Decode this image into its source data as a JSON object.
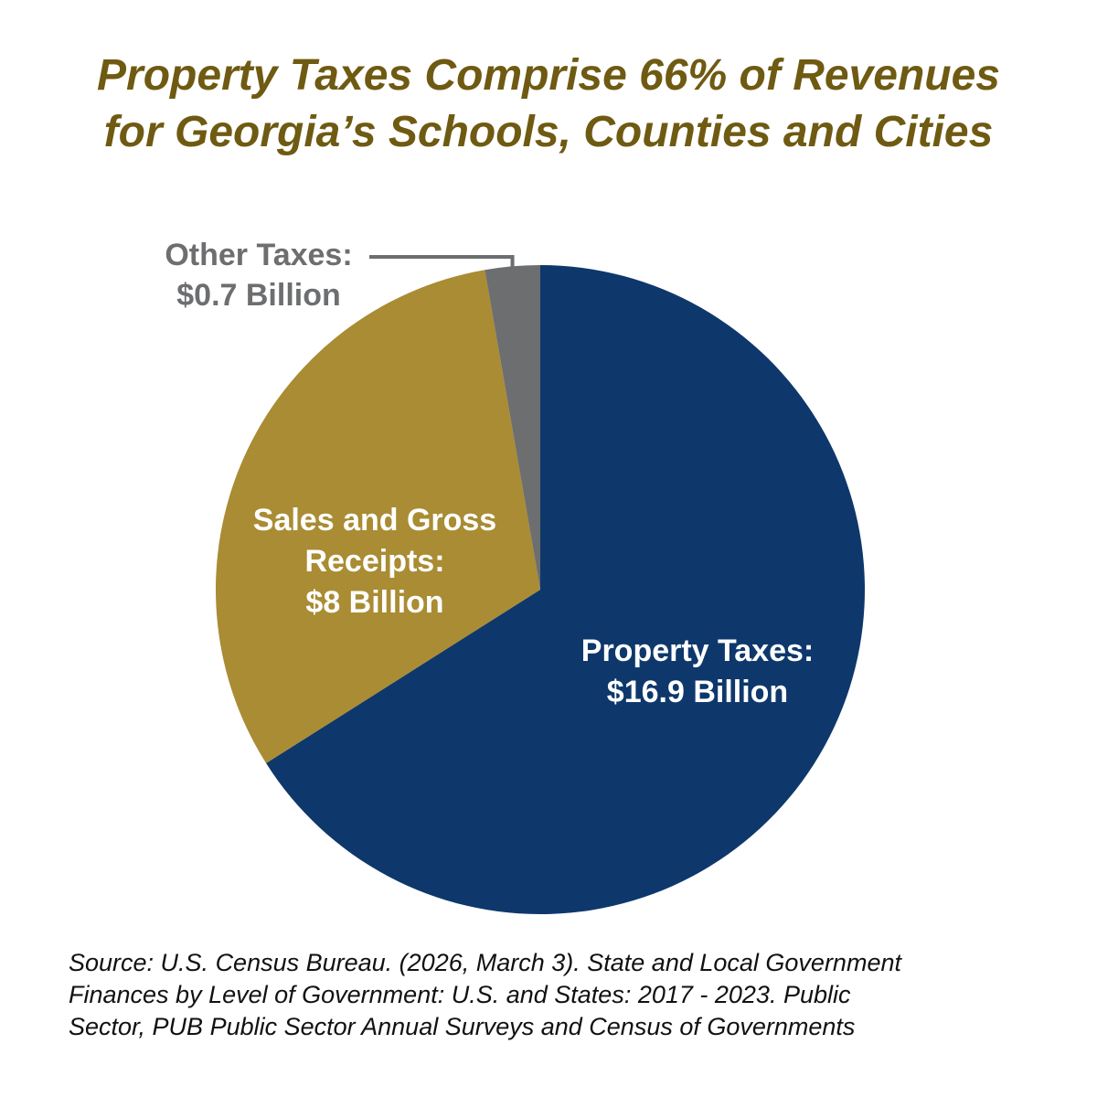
{
  "title": {
    "line1": "Property Taxes Comprise 66% of Revenues",
    "line2": "for Georgia’s Schools, Counties and Cities"
  },
  "chart_data": {
    "type": "pie",
    "title": "Property Taxes Comprise 66% of Revenues for Georgia’s Schools, Counties and Cities",
    "units": "Billion USD",
    "slices": [
      {
        "name": "Property Taxes",
        "value": 16.9,
        "label_lines": [
          "Property Taxes:",
          "$16.9 Billion"
        ],
        "color": "#0e386c",
        "label_color": "#ffffff"
      },
      {
        "name": "Sales and Gross Receipts",
        "value": 8,
        "label_lines": [
          "Sales and Gross",
          "Receipts:",
          "$8 Billion"
        ],
        "color": "#a98c33",
        "label_color": "#ffffff"
      },
      {
        "name": "Other Taxes",
        "value": 0.7,
        "label_lines": [
          "Other Taxes:",
          "$0.7 Billion"
        ],
        "color": "#6d6e70",
        "label_color": "#6d6e70"
      }
    ]
  },
  "source": {
    "line1": "Source: U.S. Census Bureau. (2026, March 3). State and Local Government",
    "line2": "Finances by Level of Government: U.S. and States: 2017 - 2023. Public",
    "line3": "Sector, PUB Public Sector Annual Surveys and Census of Governments"
  }
}
